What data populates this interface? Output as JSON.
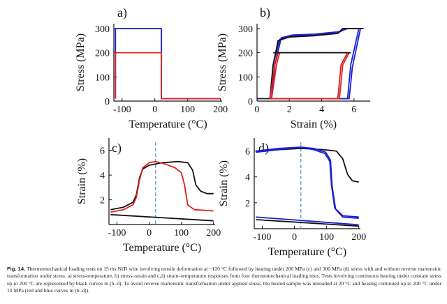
{
  "colors": {
    "blue": "#1a1fd6",
    "red": "#e02020",
    "black": "#111111",
    "dashed": "#4a90c8"
  },
  "caption": {
    "label": "Fig. 14.",
    "text": "Thermomechanical loading tests on 15 ms NiTi wire involving tensile deformation at −120 °C followed by heating under 200 MPa (c) and 300 MPa (d) stress with and without reverse martensitic transformation under stress. a) stress-temperature, b) stress–strain and c,d) strain–temperature responses from four thermomechanical loading tests. Tests involving continuous heating under constant stress up to 200 °C are represented by black curves in (b–d). To avoid reverse martensitic transformation under applied stress, the heated sample was unloaded at 20 °C and heating continued up to 200 °C under 10 MPa (red and blue curves in (b–d))."
  },
  "chart_data": [
    {
      "panel": "a)",
      "type": "line",
      "xlabel": "Temperature (°C)",
      "ylabel": "Stress (MPa)",
      "xticks": [
        -100,
        0,
        100,
        200
      ],
      "yticks": [
        0,
        100,
        200,
        300
      ],
      "xlim": [
        -125,
        205
      ],
      "ylim": [
        0,
        320
      ],
      "series": [
        {
          "color": "blue",
          "points": [
            [
              -120,
              10
            ],
            [
              -120,
              300
            ],
            [
              20,
              300
            ],
            [
              20,
              10
            ],
            [
              200,
              10
            ]
          ]
        },
        {
          "color": "red",
          "points": [
            [
              -120,
              10
            ],
            [
              -120,
              200
            ],
            [
              20,
              200
            ],
            [
              20,
              10
            ],
            [
              200,
              10
            ]
          ]
        }
      ]
    },
    {
      "panel": "b)",
      "type": "line",
      "xlabel": "Strain (%)",
      "ylabel": "Stress (MPa)",
      "xticks": [
        0,
        2,
        4,
        6
      ],
      "yticks": [
        0,
        100,
        200,
        300
      ],
      "xlim": [
        0,
        7
      ],
      "ylim": [
        0,
        320
      ],
      "series": [
        {
          "color": "blue",
          "points": [
            [
              0.8,
              10
            ],
            [
              1.0,
              150
            ],
            [
              1.4,
              255
            ],
            [
              2.0,
              268
            ],
            [
              3.5,
              272
            ],
            [
              5.0,
              282
            ],
            [
              5.5,
              300
            ],
            [
              6.1,
              300
            ],
            [
              6.3,
              300
            ],
            [
              5.8,
              150
            ],
            [
              5.6,
              10
            ],
            [
              0.8,
              10
            ]
          ]
        },
        {
          "color": "blue",
          "points": [
            [
              0.9,
              10
            ],
            [
              1.1,
              150
            ],
            [
              1.5,
              262
            ],
            [
              2.2,
              273
            ],
            [
              3.6,
              277
            ],
            [
              5.1,
              287
            ],
            [
              5.6,
              300
            ],
            [
              6.2,
              300
            ],
            [
              6.4,
              300
            ],
            [
              5.9,
              140
            ],
            [
              5.7,
              10
            ],
            [
              0.9,
              10
            ]
          ]
        },
        {
          "color": "black",
          "points": [
            [
              0.0,
              10
            ],
            [
              0.8,
              10
            ],
            [
              1.0,
              150
            ],
            [
              1.3,
              250
            ],
            [
              2.0,
              265
            ],
            [
              3.5,
              270
            ],
            [
              5.0,
              280
            ],
            [
              5.3,
              300
            ],
            [
              6.6,
              300
            ]
          ]
        },
        {
          "color": "red",
          "points": [
            [
              0.8,
              10
            ],
            [
              1.1,
              150
            ],
            [
              1.3,
              200
            ],
            [
              5.6,
              200
            ],
            [
              5.2,
              150
            ],
            [
              5.0,
              10
            ],
            [
              0.8,
              10
            ]
          ]
        },
        {
          "color": "red",
          "points": [
            [
              0.9,
              10
            ],
            [
              1.2,
              150
            ],
            [
              1.4,
              200
            ],
            [
              5.7,
              200
            ],
            [
              5.3,
              150
            ],
            [
              5.1,
              10
            ],
            [
              0.9,
              10
            ]
          ]
        },
        {
          "color": "black",
          "points": [
            [
              1.0,
              200
            ],
            [
              5.8,
              200
            ]
          ]
        }
      ]
    },
    {
      "panel": "c)",
      "type": "line",
      "xlabel": "Temperature (°C)",
      "ylabel": "Strain (%)",
      "xticks": [
        -100,
        0,
        100,
        200
      ],
      "yticks": [
        2,
        4,
        6
      ],
      "xlim": [
        -125,
        205
      ],
      "ylim": [
        0,
        7
      ],
      "series": [
        {
          "color": "black",
          "points": [
            [
              -120,
              1.2
            ],
            [
              -80,
              1.4
            ],
            [
              -50,
              1.8
            ],
            [
              -40,
              2.4
            ],
            [
              -30,
              3.8
            ],
            [
              -20,
              4.5
            ],
            [
              0,
              4.8
            ],
            [
              40,
              5.0
            ],
            [
              90,
              5.1
            ],
            [
              120,
              5.0
            ],
            [
              135,
              4.4
            ],
            [
              145,
              3.2
            ],
            [
              160,
              2.7
            ],
            [
              180,
              2.5
            ],
            [
              200,
              2.5
            ]
          ]
        },
        {
          "color": "red",
          "points": [
            [
              -120,
              1.0
            ],
            [
              -80,
              1.2
            ],
            [
              -50,
              1.6
            ],
            [
              -40,
              2.2
            ],
            [
              -30,
              3.6
            ],
            [
              -20,
              4.6
            ],
            [
              0,
              5.0
            ],
            [
              20,
              5.1
            ],
            [
              50,
              4.9
            ],
            [
              80,
              4.6
            ],
            [
              100,
              4.2
            ],
            [
              110,
              3.2
            ],
            [
              120,
              1.6
            ],
            [
              140,
              1.2
            ],
            [
              200,
              1.1
            ]
          ]
        },
        {
          "color": "black",
          "points": [
            [
              -120,
              0.8
            ],
            [
              200,
              0.3
            ]
          ]
        }
      ],
      "annotations": [
        {
          "type": "dashed-vline",
          "x": 20
        }
      ]
    },
    {
      "panel": "d)",
      "type": "line",
      "xlabel": "Temperature (°C)",
      "ylabel": "Strain (%)",
      "xticks": [
        -100,
        0,
        100,
        200
      ],
      "yticks": [
        2,
        4,
        6
      ],
      "xlim": [
        -125,
        205
      ],
      "ylim": [
        0,
        7
      ],
      "series": [
        {
          "color": "black",
          "points": [
            [
              -120,
              6.0
            ],
            [
              -50,
              6.1
            ],
            [
              20,
              6.2
            ],
            [
              90,
              6.1
            ],
            [
              130,
              6.0
            ],
            [
              150,
              5.4
            ],
            [
              165,
              4.2
            ],
            [
              180,
              3.7
            ],
            [
              200,
              3.6
            ]
          ]
        },
        {
          "color": "blue",
          "points": [
            [
              -120,
              5.9
            ],
            [
              -50,
              6.1
            ],
            [
              20,
              6.3
            ],
            [
              60,
              6.1
            ],
            [
              95,
              5.8
            ],
            [
              110,
              5.2
            ],
            [
              115,
              3.4
            ],
            [
              125,
              1.6
            ],
            [
              150,
              1.0
            ],
            [
              200,
              0.9
            ]
          ]
        },
        {
          "color": "blue",
          "points": [
            [
              -120,
              6.0
            ],
            [
              -50,
              6.2
            ],
            [
              20,
              6.3
            ],
            [
              60,
              6.2
            ],
            [
              97,
              5.9
            ],
            [
              112,
              5.3
            ],
            [
              117,
              3.3
            ],
            [
              128,
              1.5
            ],
            [
              150,
              0.9
            ],
            [
              200,
              0.8
            ]
          ]
        },
        {
          "color": "blue",
          "points": [
            [
              -120,
              0.9
            ],
            [
              200,
              0.3
            ]
          ]
        },
        {
          "color": "black",
          "points": [
            [
              -120,
              0.7
            ],
            [
              200,
              0.2
            ]
          ]
        }
      ],
      "annotations": [
        {
          "type": "dashed-vline",
          "x": 20
        }
      ]
    }
  ]
}
